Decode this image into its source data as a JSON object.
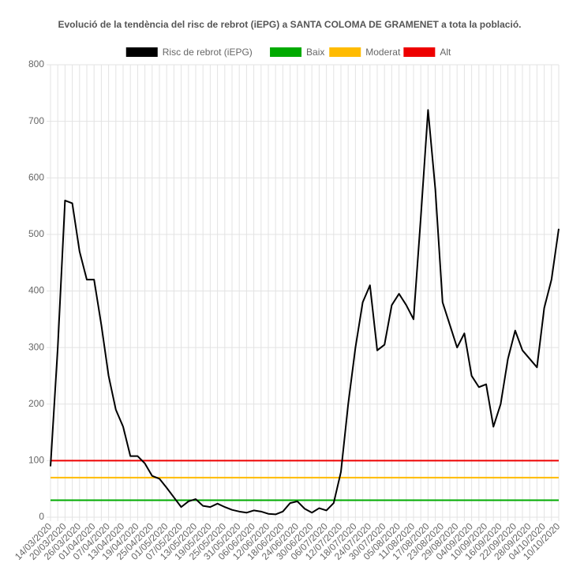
{
  "chart_data": {
    "type": "line",
    "title": "Evolució de la tendència del risc de rebrot (iEPG) a SANTA COLOMA DE GRAMENET a tota la població.",
    "categories": [
      "14/03/2020",
      null,
      "20/03/2020",
      null,
      "26/03/2020",
      null,
      "01/04/2020",
      null,
      "07/04/2020",
      null,
      "13/04/2020",
      null,
      "19/04/2020",
      null,
      "25/04/2020",
      null,
      "01/05/2020",
      null,
      "07/05/2020",
      null,
      "13/05/2020",
      null,
      "19/05/2020",
      null,
      "25/05/2020",
      null,
      "31/05/2020",
      null,
      "06/06/2020",
      null,
      "12/06/2020",
      null,
      "18/06/2020",
      null,
      "24/06/2020",
      null,
      "30/06/2020",
      null,
      "06/07/2020",
      null,
      "12/07/2020",
      null,
      "18/07/2020",
      null,
      "24/07/2020",
      null,
      "30/07/2020",
      null,
      "05/08/2020",
      null,
      "11/08/2020",
      null,
      "17/08/2020",
      null,
      "23/08/2020",
      null,
      "29/08/2020",
      null,
      "04/09/2020",
      null,
      "10/09/2020",
      null,
      "16/09/2020",
      null,
      "22/09/2020",
      null,
      "28/09/2020",
      null,
      "04/10/2020",
      null,
      "10/10/2020"
    ],
    "series": [
      {
        "name": "Risc de rebrot (iEPG)",
        "color": "#000000",
        "values": [
          90,
          300,
          560,
          555,
          470,
          420,
          420,
          340,
          250,
          190,
          160,
          108,
          108,
          95,
          73,
          68,
          52,
          35,
          18,
          28,
          32,
          20,
          18,
          24,
          18,
          13,
          10,
          8,
          12,
          10,
          6,
          5,
          10,
          25,
          28,
          15,
          8,
          16,
          12,
          25,
          80,
          200,
          300,
          380,
          410,
          295,
          305,
          375,
          395,
          375,
          350,
          530,
          720,
          580,
          380,
          340,
          300,
          325,
          250,
          230,
          235,
          160,
          200,
          280,
          330,
          295,
          280,
          265,
          370,
          420,
          510
        ]
      }
    ],
    "thresholds": [
      {
        "name": "Baix",
        "color": "#00aa00",
        "value": 30
      },
      {
        "name": "Moderat",
        "color": "#ffbb00",
        "value": 70
      },
      {
        "name": "Alt",
        "color": "#ee0000",
        "value": 100
      }
    ],
    "legend_order": [
      "Risc de rebrot (iEPG)",
      "Baix",
      "Moderat",
      "Alt"
    ],
    "ylim": [
      0,
      800
    ],
    "yticks": [
      0,
      100,
      200,
      300,
      400,
      500,
      600,
      700,
      800
    ],
    "grid": true
  }
}
